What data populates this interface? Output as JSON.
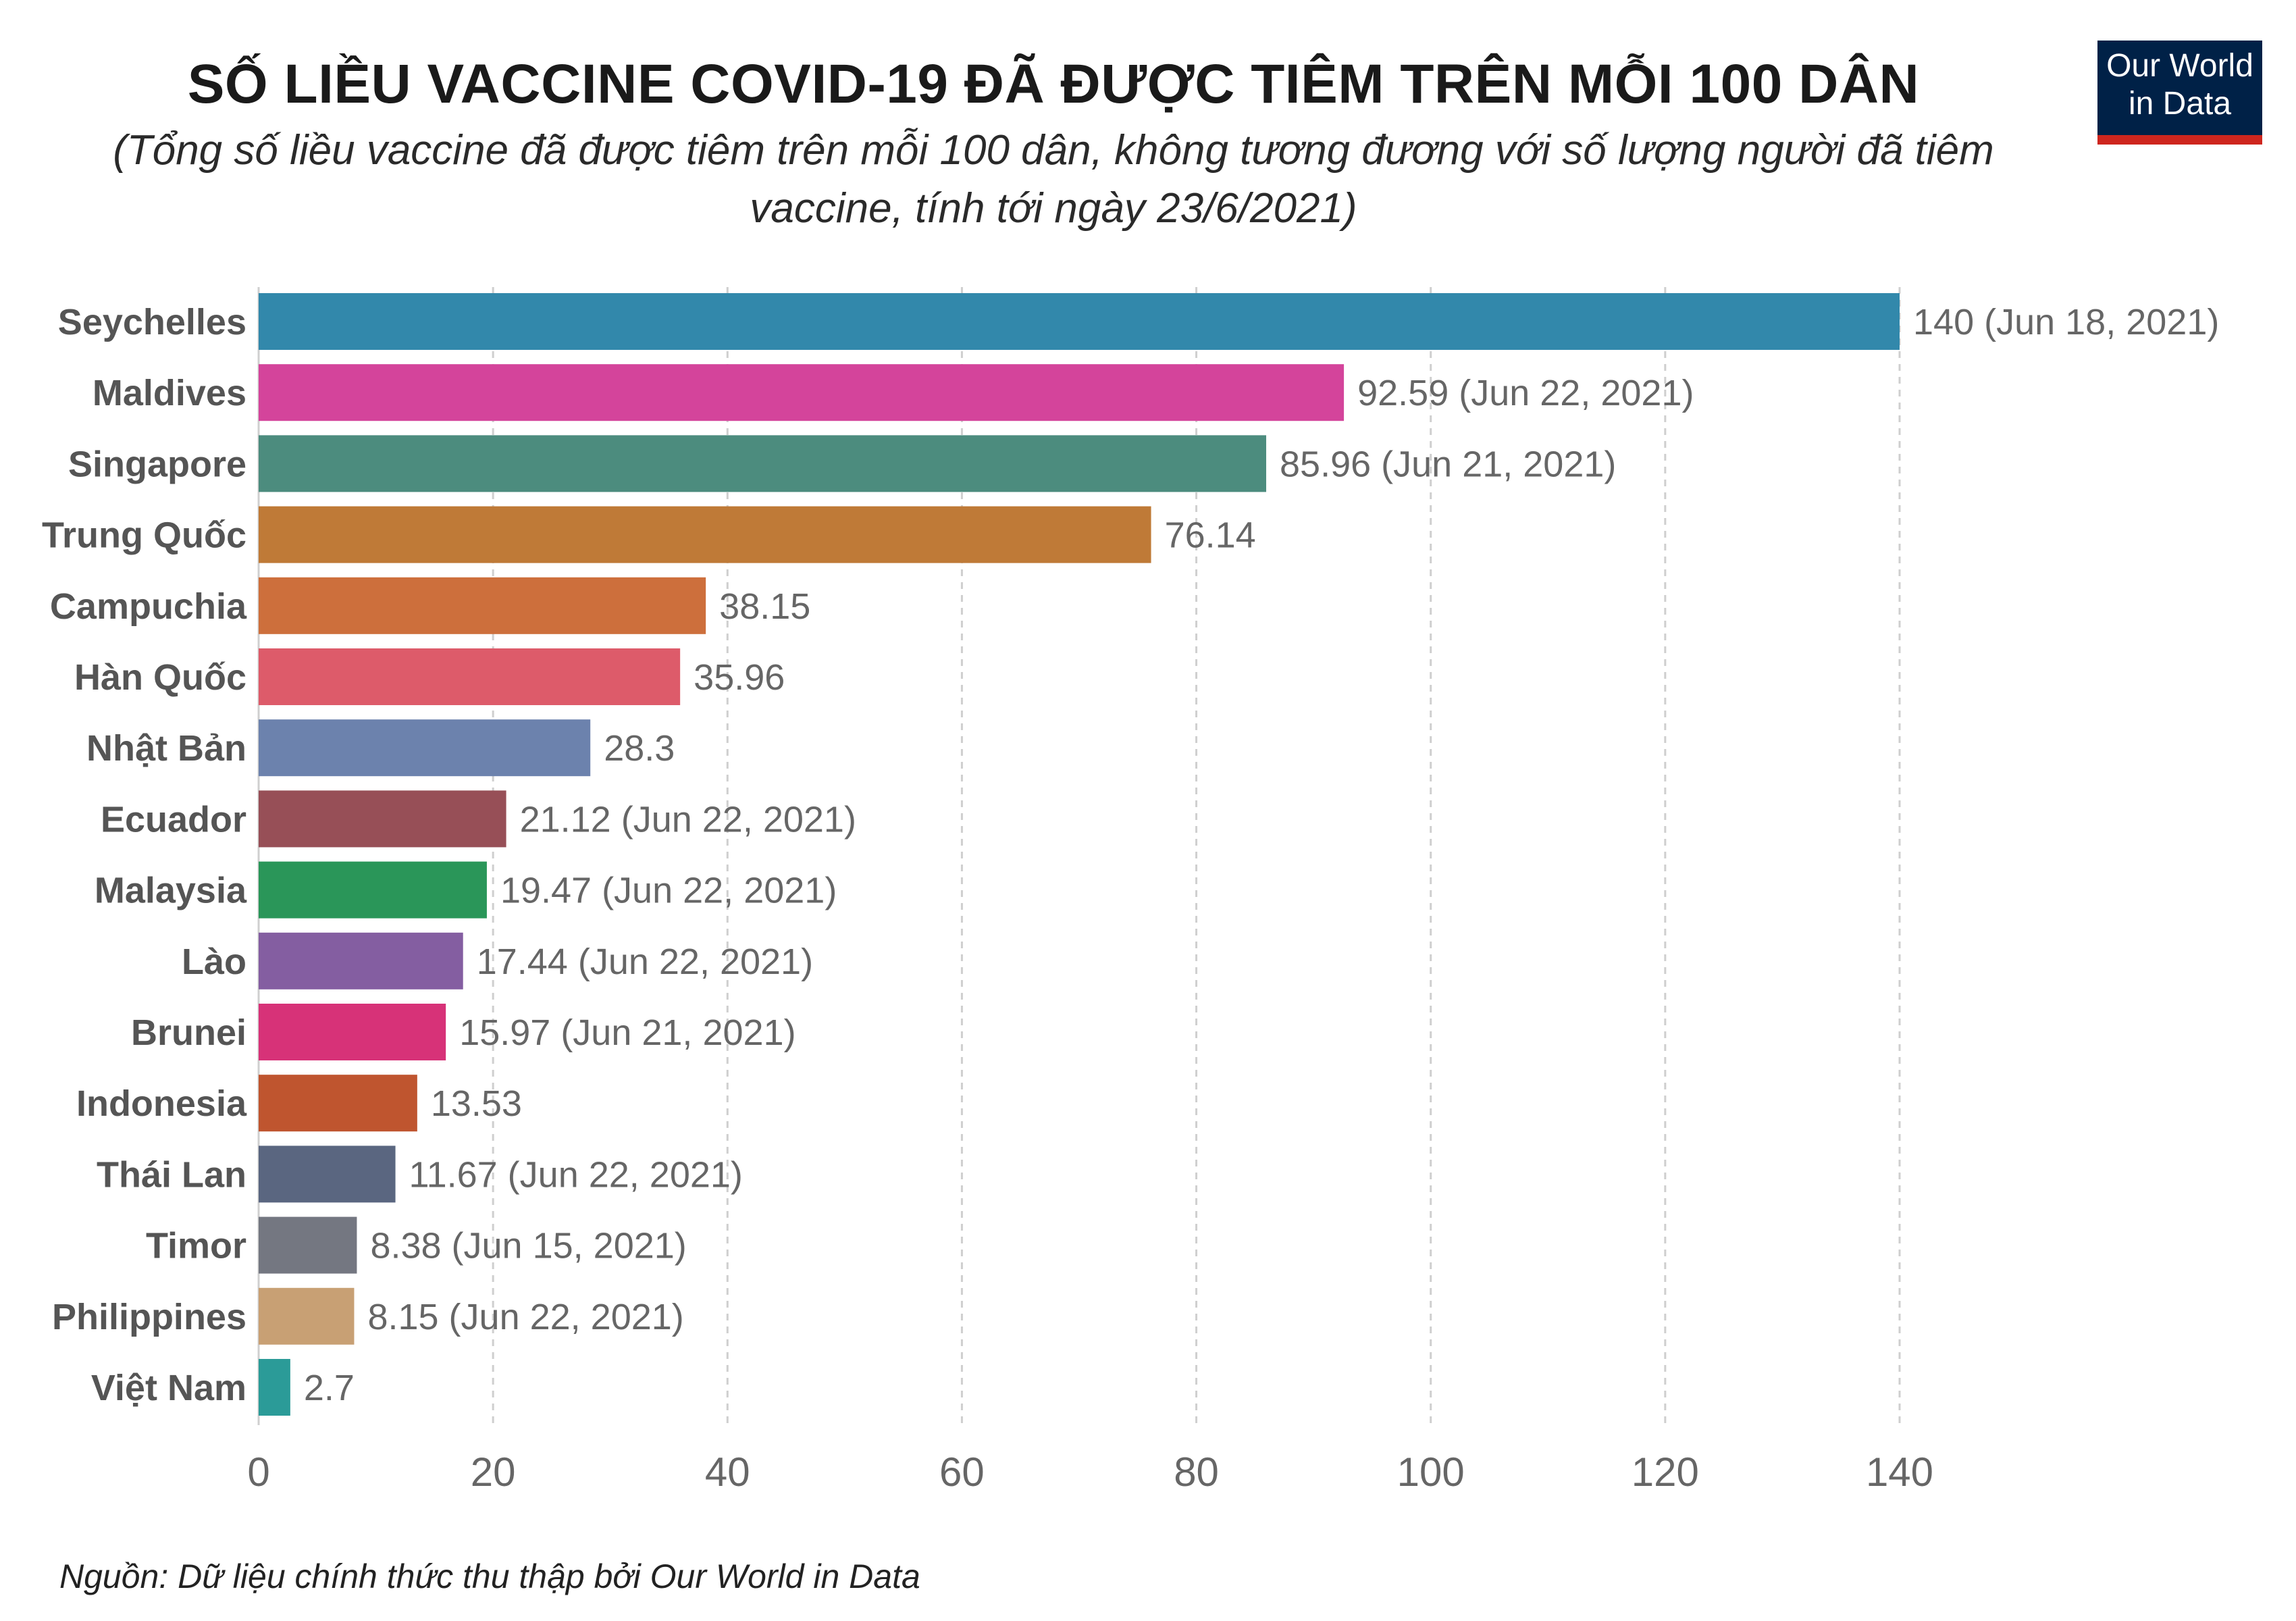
{
  "header": {
    "title": "SỐ LIỀU VACCINE COVID-19 ĐÃ ĐƯỢC TIÊM TRÊN MỖI 100 DÂN",
    "subtitle_line1": "(Tổng số liều vaccine đã được tiêm trên mỗi 100 dân, không tương đương với số lượng người đã tiêm",
    "subtitle_line2": "vaccine, tính tới ngày 23/6/2021)"
  },
  "logo": {
    "line1": "Our World",
    "line2": "in Data",
    "bg_color": "#002147",
    "accent_color": "#ce261e"
  },
  "source": "Nguồn: Dữ liệu chính thức thu thập bởi Our World in Data",
  "chart_data": {
    "type": "bar",
    "orientation": "horizontal",
    "title": "SỐ LIỀU VACCINE COVID-19 ĐÃ ĐƯỢC TIÊM TRÊN MỖI 100 DÂN",
    "xlim": [
      0,
      140
    ],
    "xticks": [
      0,
      20,
      40,
      60,
      80,
      100,
      120,
      140
    ],
    "grid": "vertical-dashed",
    "categories": [
      "Seychelles",
      "Maldives",
      "Singapore",
      "Trung Quốc",
      "Campuchia",
      "Hàn Quốc",
      "Nhật Bản",
      "Ecuador",
      "Malaysia",
      "Lào",
      "Brunei",
      "Indonesia",
      "Thái Lan",
      "Timor",
      "Philippines",
      "Việt Nam"
    ],
    "values": [
      140,
      92.59,
      85.96,
      76.14,
      38.15,
      35.96,
      28.3,
      21.12,
      19.47,
      17.44,
      15.97,
      13.53,
      11.67,
      8.38,
      8.15,
      2.7
    ],
    "labels": [
      "140 (Jun 18, 2021)",
      "92.59 (Jun 22, 2021)",
      "85.96 (Jun 21, 2021)",
      "76.14",
      "38.15",
      "35.96",
      "28.3",
      "21.12 (Jun 22, 2021)",
      "19.47 (Jun 22, 2021)",
      "17.44 (Jun 22, 2021)",
      "15.97 (Jun 21, 2021)",
      "13.53",
      "11.67 (Jun 22, 2021)",
      "8.38 (Jun 15, 2021)",
      "8.15 (Jun 22, 2021)",
      "2.7"
    ],
    "colors": [
      "#3288ab",
      "#d4449b",
      "#4c8c7e",
      "#bf7a37",
      "#cd6f3c",
      "#dd5b6a",
      "#6c82ad",
      "#974f57",
      "#2a9659",
      "#845ea1",
      "#d73278",
      "#bf552f",
      "#5a6680",
      "#747781",
      "#c8a074",
      "#2b9b98"
    ]
  }
}
